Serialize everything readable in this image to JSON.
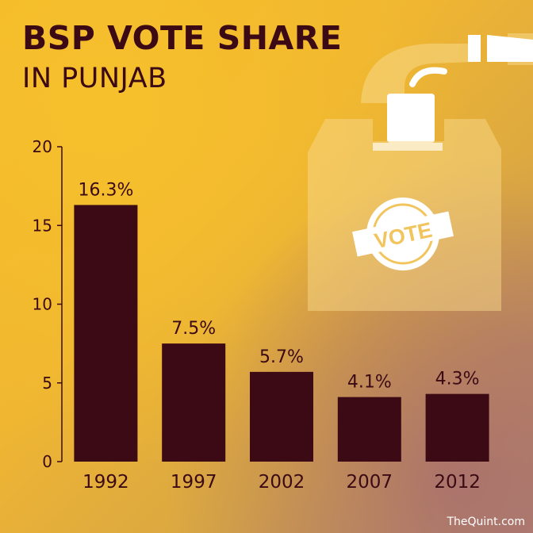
{
  "title": "BSP VOTE SHARE",
  "subtitle": "IN PUNJAB",
  "watermark": "TheQuint.com",
  "illustration": {
    "icon": "ballot-box-icon",
    "stamp_text": "VOTE"
  },
  "colors": {
    "bar": "#3b0a14",
    "axis": "#3b0a14",
    "text": "#3b0a14"
  },
  "chart_data": {
    "type": "bar",
    "categories": [
      "1992",
      "1997",
      "2002",
      "2007",
      "2012"
    ],
    "values": [
      16.3,
      7.5,
      5.7,
      4.1,
      4.3
    ],
    "data_labels": [
      "16.3%",
      "7.5%",
      "5.7%",
      "4.1%",
      "4.3%"
    ],
    "yticks": [
      0,
      5,
      10,
      15,
      20
    ],
    "ylim": [
      0,
      20
    ],
    "grid": false,
    "legend": "none"
  }
}
